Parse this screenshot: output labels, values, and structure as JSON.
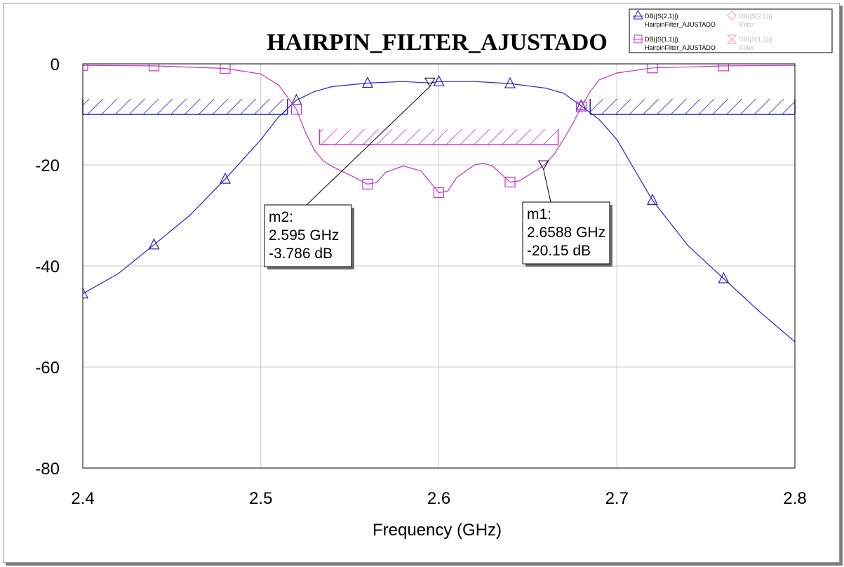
{
  "chart_data": {
    "type": "line",
    "title": "HAIRPIN_FILTER_AJUSTADO",
    "xlabel": "Frequency (GHz)",
    "ylabel": "",
    "xlim": [
      2.4,
      2.8
    ],
    "ylim": [
      -80,
      0
    ],
    "x_ticks": [
      "2.4",
      "2.5",
      "2.6",
      "2.7",
      "2.8"
    ],
    "y_ticks": [
      "0",
      "-20",
      "-40",
      "-60",
      "-80"
    ],
    "grid": true,
    "legend_position": "top-right",
    "series": [
      {
        "name": "DB(|S(2,1)|)",
        "source": "HairpinFilter_AJUSTADO",
        "color": "#2323c8",
        "marker": "triangle",
        "points": [
          [
            2.4,
            -45.5
          ],
          [
            2.42,
            -41.5
          ],
          [
            2.44,
            -35.8
          ],
          [
            2.46,
            -30
          ],
          [
            2.48,
            -22.8
          ],
          [
            2.5,
            -15
          ],
          [
            2.51,
            -10.5
          ],
          [
            2.52,
            -7.2
          ],
          [
            2.53,
            -5.5
          ],
          [
            2.54,
            -4.5
          ],
          [
            2.56,
            -3.8
          ],
          [
            2.58,
            -3.5
          ],
          [
            2.595,
            -3.786
          ],
          [
            2.6,
            -3.5
          ],
          [
            2.62,
            -3.5
          ],
          [
            2.64,
            -3.9
          ],
          [
            2.66,
            -4.8
          ],
          [
            2.67,
            -5.8
          ],
          [
            2.68,
            -8.3
          ],
          [
            2.69,
            -11
          ],
          [
            2.7,
            -15
          ],
          [
            2.72,
            -27
          ],
          [
            2.74,
            -36
          ],
          [
            2.76,
            -42.5
          ],
          [
            2.78,
            -49
          ],
          [
            2.8,
            -55
          ]
        ],
        "marker_x": [
          2.4,
          2.44,
          2.48,
          2.52,
          2.56,
          2.6,
          2.64,
          2.68,
          2.72,
          2.76
        ]
      },
      {
        "name": "DB(|S(1,1)|)",
        "source": "HairpinFilter_AJUSTADO",
        "color": "#c832c8",
        "marker": "square",
        "points": [
          [
            2.4,
            -0.3
          ],
          [
            2.44,
            -0.4
          ],
          [
            2.48,
            -0.9
          ],
          [
            2.5,
            -2
          ],
          [
            2.51,
            -4.2
          ],
          [
            2.52,
            -9
          ],
          [
            2.525,
            -13.5
          ],
          [
            2.53,
            -17
          ],
          [
            2.535,
            -19.2
          ],
          [
            2.54,
            -20.3
          ],
          [
            2.55,
            -22
          ],
          [
            2.56,
            -23.8
          ],
          [
            2.565,
            -23.5
          ],
          [
            2.57,
            -21.5
          ],
          [
            2.58,
            -20.2
          ],
          [
            2.59,
            -21.2
          ],
          [
            2.6,
            -25.5
          ],
          [
            2.605,
            -25.2
          ],
          [
            2.61,
            -22.5
          ],
          [
            2.62,
            -20
          ],
          [
            2.625,
            -19.7
          ],
          [
            2.63,
            -20.2
          ],
          [
            2.64,
            -23.4
          ],
          [
            2.645,
            -23.2
          ],
          [
            2.655,
            -21
          ],
          [
            2.6588,
            -20.15
          ],
          [
            2.665,
            -17.8
          ],
          [
            2.67,
            -15
          ],
          [
            2.675,
            -12
          ],
          [
            2.68,
            -8.5
          ],
          [
            2.685,
            -5.5
          ],
          [
            2.69,
            -3.2
          ],
          [
            2.7,
            -1.8
          ],
          [
            2.72,
            -0.8
          ],
          [
            2.76,
            -0.4
          ],
          [
            2.8,
            -0.3
          ]
        ],
        "marker_x": [
          2.4,
          2.44,
          2.48,
          2.52,
          2.56,
          2.6,
          2.64,
          2.68,
          2.72,
          2.76
        ]
      }
    ],
    "legend_inactive": [
      {
        "name": "DB(|S(2,1)|)",
        "source": "iFilter"
      },
      {
        "name": "DB(|S(1,1)|)",
        "source": "iFilter"
      }
    ],
    "spec_lines": [
      {
        "x": [
          2.4,
          2.515
        ],
        "y": -10,
        "color": "#2323c8"
      },
      {
        "x": [
          2.685,
          2.8
        ],
        "y": -10,
        "color": "#2323c8"
      },
      {
        "x": [
          2.533,
          2.667
        ],
        "y": -16,
        "color": "#c832c8"
      }
    ],
    "markers": [
      {
        "name": "m2",
        "freq": "2.595 GHz",
        "value": "-3.786 dB",
        "x": 2.595,
        "y": -3.786
      },
      {
        "name": "m1",
        "freq": "2.6588 GHz",
        "value": "-20.15 dB",
        "x": 2.6588,
        "y": -20.15
      }
    ]
  }
}
